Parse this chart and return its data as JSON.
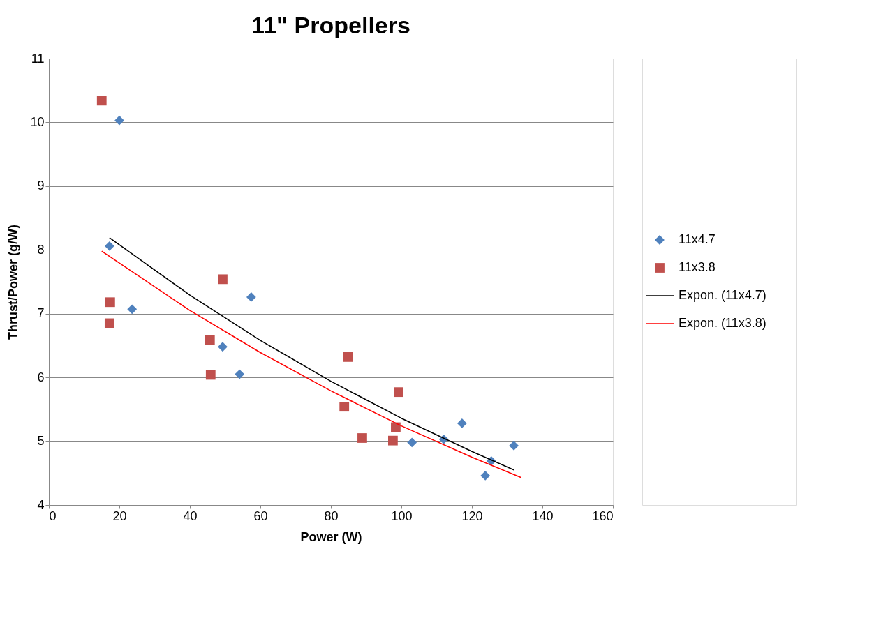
{
  "chart_data": {
    "type": "scatter",
    "title": "11\" Propellers",
    "xlabel": "Power (W)",
    "ylabel": "Thrust/Power (g/W)",
    "xlim": [
      0,
      160
    ],
    "xticks": [
      0,
      20,
      40,
      60,
      80,
      100,
      120,
      140,
      160
    ],
    "ylim": [
      4,
      11
    ],
    "yticks": [
      4,
      5,
      6,
      7,
      8,
      9,
      10,
      11
    ],
    "grid": "y",
    "legend": "right",
    "series": [
      {
        "name": "11x4.7",
        "marker": "diamond",
        "color": "#4f81bd",
        "x": [
          20.0,
          17.2,
          23.6,
          49.3,
          54.1,
          57.4,
          103,
          112,
          117.2,
          123.8,
          125.5,
          131.9
        ],
        "values": [
          10.03,
          8.06,
          7.07,
          6.48,
          6.05,
          7.26,
          4.98,
          5.03,
          5.28,
          4.46,
          4.69,
          4.93
        ]
      },
      {
        "name": "11x3.8",
        "marker": "square",
        "color": "#c0504d",
        "x": [
          15.0,
          17.4,
          17.2,
          45.7,
          45.9,
          49.3,
          84.8,
          83.8,
          88.9,
          97.6,
          98.4,
          99.2
        ],
        "values": [
          10.34,
          7.18,
          6.85,
          6.59,
          6.04,
          7.54,
          6.32,
          5.54,
          5.05,
          5.01,
          5.22,
          5.77
        ]
      },
      {
        "name": "Expon. (11x4.7)",
        "type": "line",
        "line_style": "solid",
        "color": "#000000",
        "x": [
          17.2,
          40,
          60,
          80,
          100,
          120,
          131.9
        ],
        "values": [
          8.19,
          7.29,
          6.58,
          5.94,
          5.36,
          4.84,
          4.55
        ]
      },
      {
        "name": "Expon. (11x3.8)",
        "type": "line",
        "line_style": "solid",
        "color": "#ff0000",
        "x": [
          15,
          40,
          60,
          80,
          100,
          120,
          134
        ],
        "values": [
          7.98,
          7.05,
          6.39,
          5.79,
          5.24,
          4.75,
          4.43
        ]
      }
    ]
  }
}
